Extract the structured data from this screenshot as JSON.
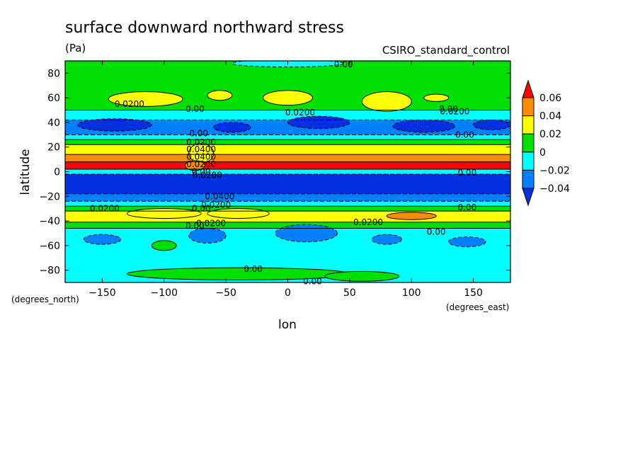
{
  "chart_data": {
    "type": "contour-map",
    "title": "surface downward northward stress",
    "units": "(Pa)",
    "model": "CSIRO_standard_control",
    "xlabel": "lon",
    "ylabel": "latitude",
    "x_units": "(degrees_east)",
    "y_units": "(degrees_north)",
    "xlim": [
      -180,
      180
    ],
    "ylim": [
      -90,
      90
    ],
    "x_ticks": [
      -150,
      -100,
      -50,
      0,
      50,
      100,
      150
    ],
    "x_tick_labels": [
      "−150",
      "−100",
      "−50",
      "0",
      "50",
      "100",
      "150"
    ],
    "y_ticks": [
      80,
      60,
      40,
      20,
      0,
      -20,
      -40,
      -60,
      -80
    ],
    "y_tick_labels": [
      "80",
      "60",
      "40",
      "20",
      "0",
      "−20",
      "−40",
      "−60",
      "−80"
    ],
    "colorbar": {
      "levels": [
        0.06,
        0.04,
        0.02,
        0,
        -0.02,
        -0.04
      ],
      "labels": [
        "0.06",
        "0.04",
        "0.02",
        "0",
        "−0.02",
        "−0.04"
      ],
      "colors": [
        "#ff0000",
        "#ff8c00",
        "#ffff00",
        "#00e000",
        "#00ffff",
        "#0080ff",
        "#0030e0"
      ]
    },
    "bands": [
      {
        "lat_top": 90,
        "lat_bot": 50,
        "value": 0.01
      },
      {
        "lat_top": 50,
        "lat_bot": 42,
        "value": -0.01
      },
      {
        "lat_top": 42,
        "lat_bot": 30,
        "value": -0.025
      },
      {
        "lat_top": 30,
        "lat_bot": 26,
        "value": -0.01
      },
      {
        "lat_top": 26,
        "lat_bot": 22,
        "value": 0.01
      },
      {
        "lat_top": 22,
        "lat_bot": 14,
        "value": 0.03
      },
      {
        "lat_top": 14,
        "lat_bot": 8,
        "value": 0.045
      },
      {
        "lat_top": 8,
        "lat_bot": 2,
        "value": 0.07
      },
      {
        "lat_top": 2,
        "lat_bot": -2,
        "value": -0.01
      },
      {
        "lat_top": -2,
        "lat_bot": -18,
        "value": -0.045
      },
      {
        "lat_top": -18,
        "lat_bot": -24,
        "value": -0.025
      },
      {
        "lat_top": -24,
        "lat_bot": -28,
        "value": -0.01
      },
      {
        "lat_top": -28,
        "lat_bot": -32,
        "value": 0.01
      },
      {
        "lat_top": -32,
        "lat_bot": -41,
        "value": 0.03
      },
      {
        "lat_top": -41,
        "lat_bot": -46,
        "value": 0.01
      },
      {
        "lat_top": -46,
        "lat_bot": -90,
        "value": -0.01
      }
    ],
    "blobs": [
      {
        "lon": -115,
        "lat": 59,
        "rlon": 30,
        "rlat": 6,
        "value": 0.03
      },
      {
        "lon": -55,
        "lat": 62,
        "rlon": 10,
        "rlat": 4,
        "value": 0.03
      },
      {
        "lon": 0,
        "lat": 60,
        "rlon": 20,
        "rlat": 6,
        "value": 0.03
      },
      {
        "lon": 80,
        "lat": 57,
        "rlon": 20,
        "rlat": 8,
        "value": 0.03
      },
      {
        "lon": 120,
        "lat": 60,
        "rlon": 10,
        "rlat": 3,
        "value": 0.03
      },
      {
        "lon": -70,
        "lat": 15,
        "rlon": 10,
        "rlat": 8,
        "value": 0.03
      },
      {
        "lon": -75,
        "lat": 5,
        "rlon": 8,
        "rlat": 4,
        "value": 0.045
      },
      {
        "lon": 0,
        "lat": 88,
        "rlon": 45,
        "rlat": 3,
        "value": -0.01
      },
      {
        "lon": -140,
        "lat": 38,
        "rlon": 30,
        "rlat": 5,
        "value": -0.045
      },
      {
        "lon": -45,
        "lat": 36,
        "rlon": 15,
        "rlat": 4,
        "value": -0.045
      },
      {
        "lon": 25,
        "lat": 40,
        "rlon": 25,
        "rlat": 5,
        "value": -0.045
      },
      {
        "lon": 110,
        "lat": 37,
        "rlon": 25,
        "rlat": 5,
        "value": -0.045
      },
      {
        "lon": 165,
        "lat": 38,
        "rlon": 15,
        "rlat": 4,
        "value": -0.045
      },
      {
        "lon": 100,
        "lat": -36,
        "rlon": 20,
        "rlat": 3,
        "value": 0.045
      },
      {
        "lon": -100,
        "lat": -34,
        "rlon": 30,
        "rlat": 4,
        "value": 0.03
      },
      {
        "lon": -40,
        "lat": -34,
        "rlon": 25,
        "rlat": 4,
        "value": 0.03
      },
      {
        "lon": -150,
        "lat": -55,
        "rlon": 15,
        "rlat": 4,
        "value": -0.025
      },
      {
        "lon": -65,
        "lat": -52,
        "rlon": 15,
        "rlat": 6,
        "value": -0.025
      },
      {
        "lon": 15,
        "lat": -50,
        "rlon": 25,
        "rlat": 7,
        "value": -0.025
      },
      {
        "lon": 80,
        "lat": -55,
        "rlon": 12,
        "rlat": 4,
        "value": -0.025
      },
      {
        "lon": 145,
        "lat": -57,
        "rlon": 15,
        "rlat": 4,
        "value": -0.025
      },
      {
        "lon": -100,
        "lat": -60,
        "rlon": 10,
        "rlat": 4,
        "value": 0.01
      },
      {
        "lon": -40,
        "lat": -83,
        "rlon": 90,
        "rlat": 5,
        "value": 0.01
      },
      {
        "lon": 60,
        "lat": -85,
        "rlon": 30,
        "rlat": 4,
        "value": 0.01
      }
    ],
    "contour_labels": [
      {
        "text": "0.00",
        "lon": 45,
        "lat": 87
      },
      {
        "text": "0.0200",
        "lon": -128,
        "lat": 55
      },
      {
        "text": "0.00",
        "lon": -75,
        "lat": 51
      },
      {
        "text": "0.0200",
        "lon": 10,
        "lat": 48
      },
      {
        "text": "0.00",
        "lon": 130,
        "lat": 51
      },
      {
        "text": "0.0200",
        "lon": 135,
        "lat": 49
      },
      {
        "text": "0.00",
        "lon": 143,
        "lat": 30
      },
      {
        "text": "0.00",
        "lon": -72,
        "lat": 31
      },
      {
        "text": "0.0200",
        "lon": -70,
        "lat": 24
      },
      {
        "text": "0.0400",
        "lon": -70,
        "lat": 18
      },
      {
        "text": "0.0400",
        "lon": -70,
        "lat": 12
      },
      {
        "text": "0.0200",
        "lon": -70,
        "lat": 6
      },
      {
        "text": "0.00",
        "lon": -70,
        "lat": 0
      },
      {
        "text": "0.0200",
        "lon": -65,
        "lat": -3
      },
      {
        "text": "0.00",
        "lon": 145,
        "lat": -1
      },
      {
        "text": "0.0400",
        "lon": -55,
        "lat": -20
      },
      {
        "text": "0.0200",
        "lon": -58,
        "lat": -27
      },
      {
        "text": "0.00",
        "lon": -70,
        "lat": -30
      },
      {
        "text": "0.0200",
        "lon": -148,
        "lat": -30
      },
      {
        "text": "0.00",
        "lon": 145,
        "lat": -29
      },
      {
        "text": "0.0200",
        "lon": 65,
        "lat": -41
      },
      {
        "text": "0.0200",
        "lon": -62,
        "lat": -42
      },
      {
        "text": "0.00",
        "lon": -75,
        "lat": -44
      },
      {
        "text": "0.00",
        "lon": 120,
        "lat": -49
      },
      {
        "text": "0.00",
        "lon": -28,
        "lat": -79
      },
      {
        "text": "0.00",
        "lon": 20,
        "lat": -89
      }
    ]
  }
}
